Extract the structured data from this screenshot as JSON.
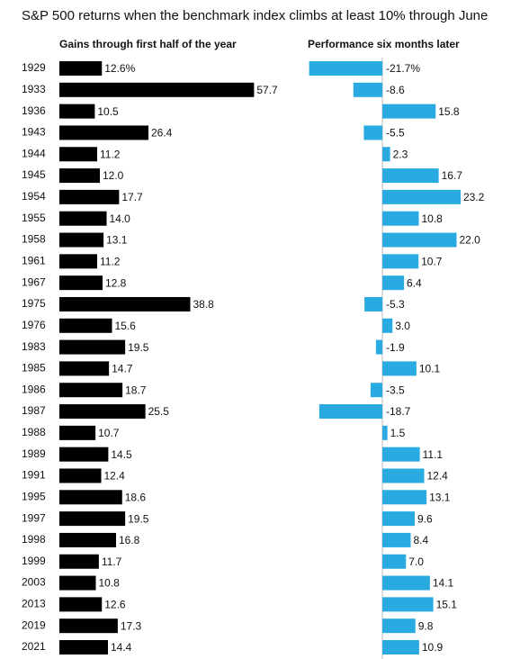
{
  "chart_data": {
    "type": "bar",
    "subtitle": "S&P 500 returns when the benchmark index climbs at least 10% through June",
    "categories": [
      "1929",
      "1933",
      "1936",
      "1943",
      "1944",
      "1945",
      "1954",
      "1955",
      "1958",
      "1961",
      "1967",
      "1975",
      "1976",
      "1983",
      "1985",
      "1986",
      "1987",
      "1988",
      "1989",
      "1991",
      "1995",
      "1997",
      "1998",
      "1999",
      "2003",
      "2013",
      "2019",
      "2021"
    ],
    "series": [
      {
        "name": "Gains through first half of the year",
        "color": "#000000",
        "values": [
          12.6,
          57.7,
          10.5,
          26.4,
          11.2,
          12.0,
          17.7,
          14.0,
          13.1,
          11.2,
          12.8,
          38.8,
          15.6,
          19.5,
          14.7,
          18.7,
          25.5,
          10.7,
          14.5,
          12.4,
          18.6,
          19.5,
          16.8,
          11.7,
          10.8,
          12.6,
          17.3,
          14.4
        ],
        "value_labels": [
          "12.6%",
          "57.7",
          "10.5",
          "26.4",
          "11.2",
          "12.0",
          "17.7",
          "14.0",
          "13.1",
          "11.2",
          "12.8",
          "38.8",
          "15.6",
          "19.5",
          "14.7",
          "18.7",
          "25.5",
          "10.7",
          "14.5",
          "12.4",
          "18.6",
          "19.5",
          "16.8",
          "11.7",
          "10.8",
          "12.6",
          "17.3",
          "14.4"
        ]
      },
      {
        "name": "Performance six months later",
        "color": "#29abe2",
        "values": [
          -21.7,
          -8.6,
          15.8,
          -5.5,
          2.3,
          16.7,
          23.2,
          10.8,
          22.0,
          10.7,
          6.4,
          -5.3,
          3.0,
          -1.9,
          10.1,
          -3.5,
          -18.7,
          1.5,
          11.1,
          12.4,
          13.1,
          9.6,
          8.4,
          7.0,
          14.1,
          15.1,
          9.8,
          10.9
        ],
        "value_labels": [
          "-21.7%",
          "-8.6",
          "15.8",
          "-5.5",
          "2.3",
          "16.7",
          "23.2",
          "10.8",
          "22.0",
          "10.7",
          "6.4",
          "-5.3",
          "3.0",
          "-1.9",
          "10.1",
          "-3.5",
          "-18.7",
          "1.5",
          "11.1",
          "12.4",
          "13.1",
          "9.6",
          "8.4",
          "7.0",
          "14.1",
          "15.1",
          "9.8",
          "10.9"
        ]
      }
    ]
  }
}
